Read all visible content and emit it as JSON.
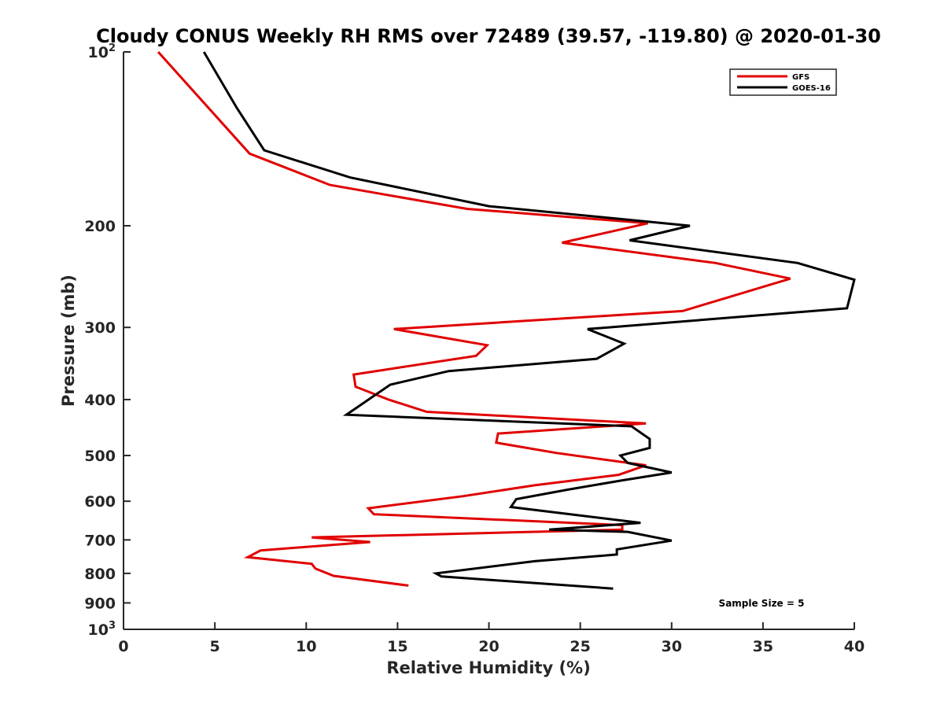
{
  "chart_data": {
    "type": "line",
    "title": "Cloudy CONUS Weekly RH RMS over 72489 (39.57, -119.80) @ 2020-01-30",
    "xlabel": "Relative Humidity (%)",
    "ylabel": "Pressure (mb)",
    "xlim": [
      0,
      40
    ],
    "ylim": [
      100,
      1000
    ],
    "y_scale": "log",
    "y_reversed": true,
    "x_ticks": [
      0,
      5,
      10,
      15,
      20,
      25,
      30,
      35,
      40
    ],
    "x_tick_labels": [
      "0",
      "5",
      "10",
      "15",
      "20",
      "25",
      "30",
      "35",
      "40"
    ],
    "y_ticks": [
      {
        "value": 100,
        "base": "10",
        "exp": "2"
      },
      {
        "value": 200,
        "label": "200"
      },
      {
        "value": 300,
        "label": "300"
      },
      {
        "value": 400,
        "label": "400"
      },
      {
        "value": 500,
        "label": "500"
      },
      {
        "value": 600,
        "label": "600"
      },
      {
        "value": 700,
        "label": "700"
      },
      {
        "value": 800,
        "label": "800"
      },
      {
        "value": 900,
        "label": "900"
      },
      {
        "value": 1000,
        "base": "10",
        "exp": "3"
      }
    ],
    "grid": false,
    "legend_position": "top-right",
    "annotation": "Sample Size = 5",
    "series": [
      {
        "name": "GFS",
        "color": "#e00000",
        "points": [
          [
            1.9,
            100
          ],
          [
            6.9,
            150
          ],
          [
            11.3,
            170
          ],
          [
            18.8,
            187
          ],
          [
            28.7,
            198
          ],
          [
            24.0,
            214
          ],
          [
            32.4,
            232
          ],
          [
            36.5,
            247
          ],
          [
            30.6,
            281
          ],
          [
            14.8,
            302
          ],
          [
            19.9,
            322
          ],
          [
            19.3,
            336
          ],
          [
            12.6,
            362
          ],
          [
            12.7,
            380
          ],
          [
            14.5,
            400
          ],
          [
            16.6,
            420
          ],
          [
            28.6,
            440
          ],
          [
            20.5,
            458
          ],
          [
            20.4,
            475
          ],
          [
            23.7,
            495
          ],
          [
            28.6,
            520
          ],
          [
            27.1,
            540
          ],
          [
            22.5,
            563
          ],
          [
            18.6,
            588
          ],
          [
            13.4,
            617
          ],
          [
            13.7,
            632
          ],
          [
            27.3,
            660
          ],
          [
            27.3,
            672
          ],
          [
            10.3,
            693
          ],
          [
            13.5,
            706
          ],
          [
            7.5,
            730
          ],
          [
            6.8,
            750
          ],
          [
            10.3,
            770
          ],
          [
            10.5,
            785
          ],
          [
            11.5,
            808
          ],
          [
            15.6,
            840
          ]
        ]
      },
      {
        "name": "GOES-16",
        "color": "#000000",
        "points": [
          [
            4.4,
            100
          ],
          [
            6.2,
            125
          ],
          [
            7.7,
            148
          ],
          [
            12.4,
            165
          ],
          [
            20.0,
            185
          ],
          [
            31.0,
            200
          ],
          [
            27.7,
            212
          ],
          [
            36.9,
            232
          ],
          [
            40.0,
            248
          ],
          [
            39.6,
            278
          ],
          [
            25.4,
            302
          ],
          [
            27.4,
            320
          ],
          [
            25.9,
            340
          ],
          [
            17.8,
            357
          ],
          [
            14.6,
            377
          ],
          [
            12.2,
            425
          ],
          [
            27.8,
            445
          ],
          [
            28.8,
            468
          ],
          [
            28.8,
            485
          ],
          [
            27.2,
            500
          ],
          [
            27.6,
            515
          ],
          [
            30.0,
            535
          ],
          [
            27.3,
            552
          ],
          [
            24.3,
            573
          ],
          [
            21.5,
            595
          ],
          [
            21.2,
            614
          ],
          [
            28.3,
            654
          ],
          [
            23.3,
            672
          ],
          [
            27.6,
            678
          ],
          [
            30.0,
            702
          ],
          [
            27.0,
            727
          ],
          [
            27.0,
            742
          ],
          [
            22.5,
            762
          ],
          [
            17.1,
            800
          ],
          [
            17.4,
            810
          ],
          [
            26.8,
            850
          ]
        ]
      }
    ]
  }
}
